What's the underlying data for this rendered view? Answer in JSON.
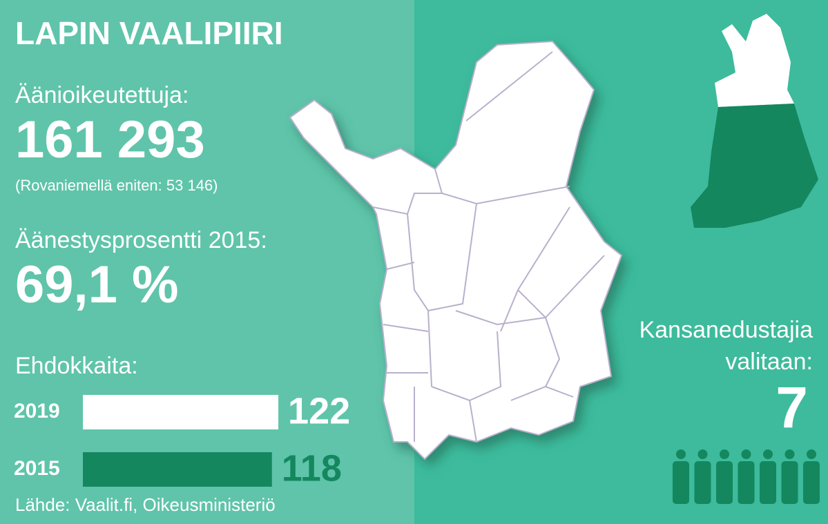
{
  "title": "LAPIN VAALIPIIRI",
  "eligible": {
    "label": "Äänioikeutettuja:",
    "value": "161 293",
    "note": "(Rovaniemellä eniten: 53 146)"
  },
  "turnout": {
    "label": "Äänestysprosentti 2015:",
    "value": "69,1 %"
  },
  "candidates": {
    "label": "Ehdokkaita:",
    "categories": [
      "2019",
      "2015"
    ],
    "values": [
      122,
      118
    ],
    "colors": [
      "#ffffff",
      "#14875f"
    ]
  },
  "seats": {
    "label": "Kansanedustajia valitaan:",
    "value": 7,
    "color": "#14875f"
  },
  "source": "Lähde: Vaalit.fi, Oikeusministeriö"
}
